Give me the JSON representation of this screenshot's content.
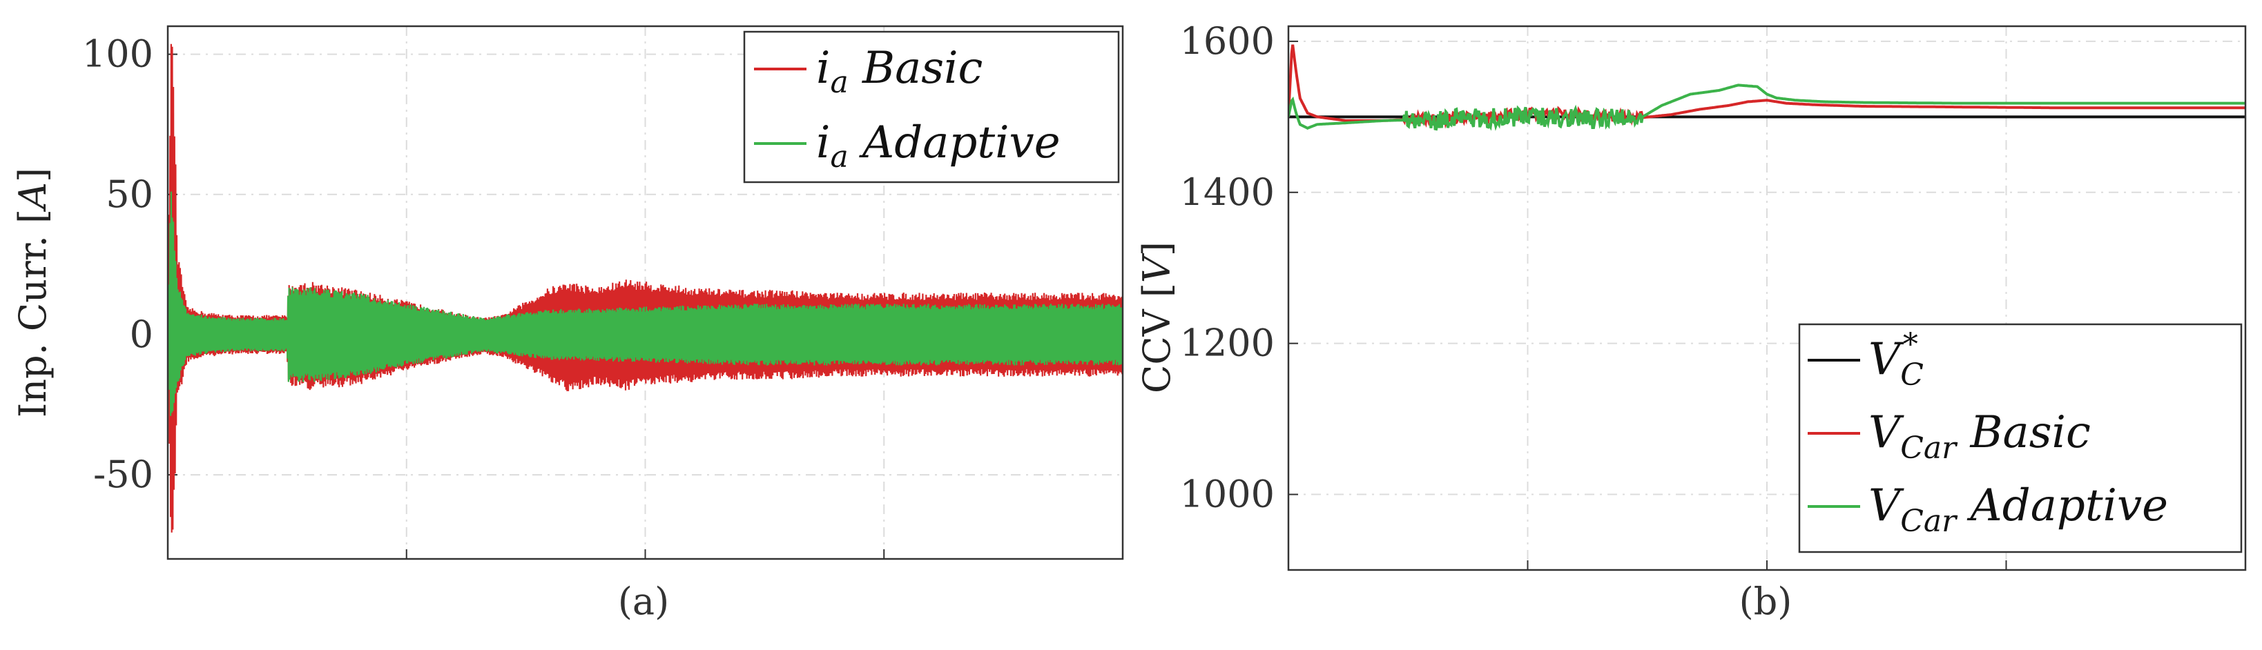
{
  "chart_data": [
    {
      "type": "line",
      "panel": "(a)",
      "ylabel": "Inp. Curr. [A]",
      "ylim": [
        -80,
        110
      ],
      "yticks": [
        100,
        50,
        0,
        -50
      ],
      "ytick_labels": [
        "100",
        "50",
        "0",
        "-50"
      ],
      "xticks_unlabeled": 4,
      "grid": true,
      "legend": {
        "placement": "top-right",
        "entries": [
          "i_a Basic",
          "i_a Adaptive"
        ]
      },
      "series": [
        {
          "name": "i_a Basic",
          "color": "#d62728",
          "envelope": {
            "x": [
              0.0,
              0.003,
              0.006,
              0.01,
              0.02,
              0.04,
              0.07,
              0.1,
              0.125,
              0.126,
              0.15,
              0.2,
              0.25,
              0.3,
              0.33,
              0.35,
              0.38,
              0.4,
              0.42,
              0.45,
              0.48,
              0.5,
              0.55,
              0.6,
              0.65,
              0.7,
              0.8,
              0.9,
              1.0
            ],
            "upper": [
              0,
              110,
              100,
              30,
              10,
              8,
              7,
              7,
              7,
              18,
              19,
              16,
              12,
              8,
              6,
              7,
              13,
              17,
              19,
              17,
              20,
              19,
              17,
              16,
              16,
              15,
              15,
              15,
              15
            ],
            "lower": [
              0,
              -80,
              -70,
              -25,
              -10,
              -8,
              -7,
              -7,
              -7,
              -18,
              -20,
              -18,
              -13,
              -9,
              -7,
              -8,
              -13,
              -17,
              -21,
              -18,
              -20,
              -18,
              -17,
              -16,
              -16,
              -15,
              -15,
              -15,
              -15
            ]
          }
        },
        {
          "name": "i_a Adaptive",
          "color": "#3cb34a",
          "envelope": {
            "x": [
              0.0,
              0.003,
              0.006,
              0.01,
              0.02,
              0.04,
              0.07,
              0.1,
              0.125,
              0.126,
              0.15,
              0.2,
              0.25,
              0.3,
              0.33,
              0.35,
              0.4,
              0.5,
              0.6,
              0.7,
              0.8,
              0.9,
              1.0
            ],
            "upper": [
              0,
              55,
              40,
              20,
              8,
              7,
              6,
              6,
              6,
              17,
              17,
              15,
              11,
              8,
              6,
              7,
              9,
              10,
              11,
              11,
              11,
              11,
              11
            ],
            "lower": [
              0,
              -35,
              -30,
              -18,
              -8,
              -7,
              -6,
              -6,
              -6,
              -17,
              -17,
              -15,
              -11,
              -8,
              -6,
              -7,
              -9,
              -10,
              -11,
              -11,
              -11,
              -11,
              -11
            ]
          }
        }
      ]
    },
    {
      "type": "line",
      "panel": "(b)",
      "ylabel": "CCV [V]",
      "ylim": [
        900,
        1620
      ],
      "yticks": [
        1600,
        1400,
        1200,
        1000
      ],
      "ytick_labels": [
        "1600",
        "1400",
        "1200",
        "1000"
      ],
      "xticks_unlabeled": 4,
      "grid": true,
      "legend": {
        "placement": "bottom-right",
        "entries": [
          "V_C^* ",
          "V_Car Basic",
          "V_Car Adaptive"
        ]
      },
      "series": [
        {
          "name": "V_C^*",
          "color": "#111111",
          "x": [
            0.0,
            1.0
          ],
          "y": [
            1500,
            1500
          ]
        },
        {
          "name": "V_Car Basic",
          "color": "#d62728",
          "x": [
            0.0,
            0.004,
            0.008,
            0.012,
            0.02,
            0.03,
            0.06,
            0.1,
            0.13,
            0.16,
            0.2,
            0.25,
            0.3,
            0.35,
            0.37,
            0.4,
            0.43,
            0.46,
            0.48,
            0.5,
            0.52,
            0.55,
            0.6,
            0.7,
            0.8,
            0.9,
            1.0
          ],
          "y": [
            1500,
            1600,
            1560,
            1525,
            1505,
            1500,
            1495,
            1495,
            1497,
            1498,
            1500,
            1505,
            1503,
            1500,
            1499,
            1503,
            1510,
            1515,
            1520,
            1522,
            1518,
            1516,
            1514,
            1513,
            1512,
            1512,
            1512
          ]
        },
        {
          "name": "V_Car Adaptive",
          "color": "#3cb34a",
          "x": [
            0.0,
            0.004,
            0.008,
            0.012,
            0.02,
            0.03,
            0.06,
            0.1,
            0.13,
            0.16,
            0.2,
            0.25,
            0.3,
            0.35,
            0.37,
            0.39,
            0.42,
            0.45,
            0.47,
            0.49,
            0.5,
            0.51,
            0.53,
            0.56,
            0.6,
            0.7,
            0.8,
            0.9,
            1.0
          ],
          "y": [
            1500,
            1525,
            1505,
            1490,
            1485,
            1490,
            1492,
            1495,
            1496,
            1497,
            1498,
            1500,
            1499,
            1498,
            1500,
            1515,
            1530,
            1535,
            1542,
            1540,
            1530,
            1525,
            1522,
            1520,
            1519,
            1518,
            1518,
            1518,
            1518
          ]
        }
      ]
    }
  ]
}
